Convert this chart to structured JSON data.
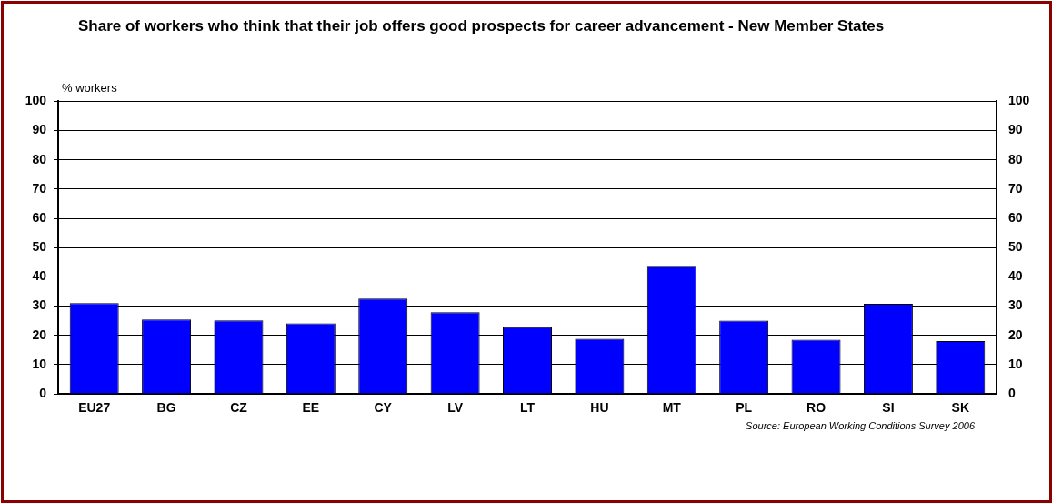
{
  "chart_data": {
    "type": "bar",
    "title": "Share of workers who think that their job offers good prospects for career advancement - New Member States",
    "ylabel": "% workers",
    "categories": [
      "EU27",
      "BG",
      "CZ",
      "EE",
      "CY",
      "LV",
      "LT",
      "HU",
      "MT",
      "PL",
      "RO",
      "SI",
      "SK"
    ],
    "values": [
      31.0,
      25.4,
      25.1,
      24.1,
      32.6,
      27.9,
      22.8,
      18.8,
      43.8,
      25.0,
      18.5,
      30.8,
      18.0
    ],
    "color": "#0000ff",
    "ylim": [
      0,
      100
    ],
    "yticks": [
      0,
      10,
      20,
      30,
      40,
      50,
      60,
      70,
      80,
      90,
      100
    ],
    "y2lim": [
      0,
      100
    ],
    "y2ticks": [
      0,
      10,
      20,
      30,
      40,
      50,
      60,
      70,
      80,
      90,
      100
    ],
    "grid": "y",
    "legend": false,
    "annotations": [
      "Source: European Working Conditions Survey 2006"
    ]
  }
}
